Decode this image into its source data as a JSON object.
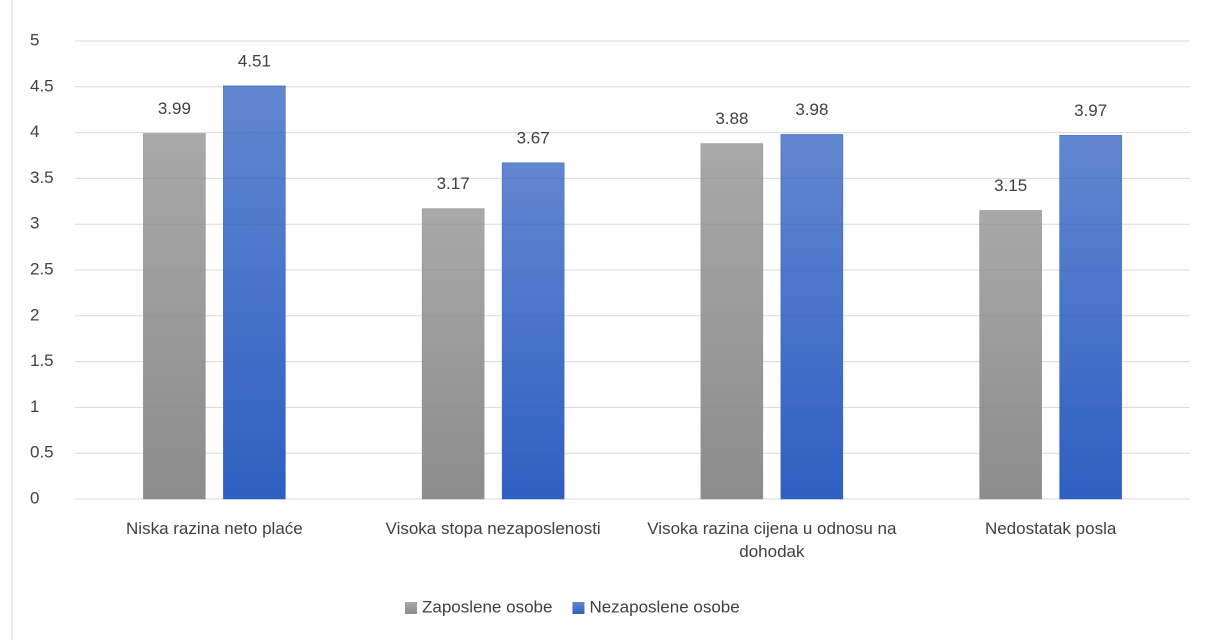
{
  "chart_data": {
    "type": "bar",
    "categories": [
      "Niska razina neto plaće",
      "Visoka stopa nezaposlenosti",
      "Visoka razina cijena u odnosu na dohodak",
      "Nedostatak posla"
    ],
    "series": [
      {
        "name": "Zaposlene osobe",
        "color": "#8c8c8c",
        "values": [
          3.99,
          3.17,
          3.88,
          3.15
        ]
      },
      {
        "name": "Nezaposlene osobe",
        "color": "#2e5fc1",
        "values": [
          4.51,
          3.67,
          3.98,
          3.97
        ]
      }
    ],
    "ylim": [
      0,
      5
    ],
    "yticks": [
      0,
      0.5,
      1,
      1.5,
      2,
      2.5,
      3,
      3.5,
      4,
      4.5,
      5
    ],
    "grid": true,
    "legend": "bottom"
  }
}
